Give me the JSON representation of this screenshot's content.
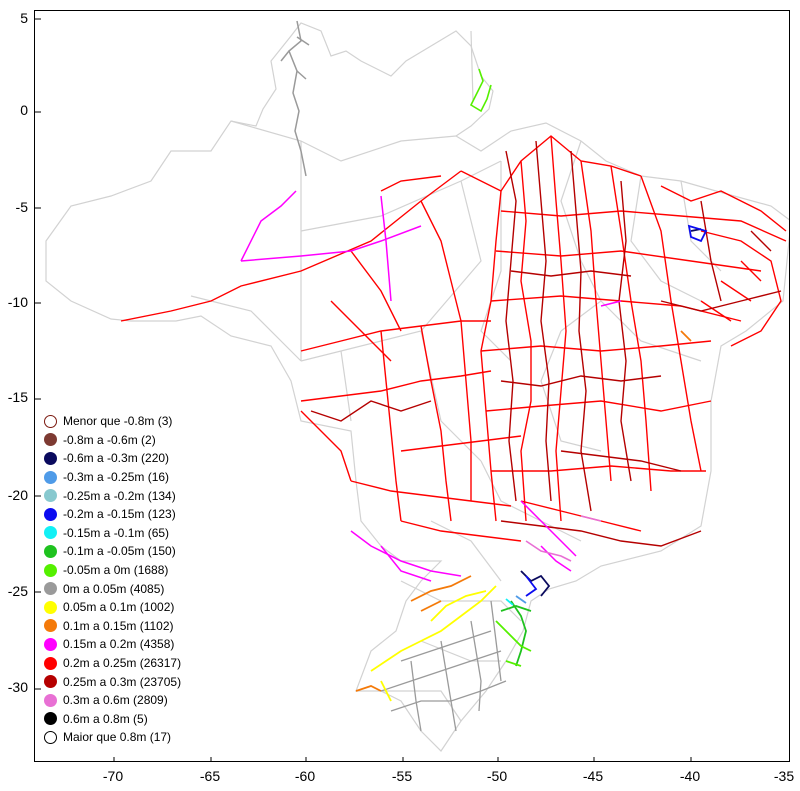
{
  "axes": {
    "x_ticks": [
      "-70",
      "-65",
      "-60",
      "-55",
      "-50",
      "-45",
      "-40",
      "-35"
    ],
    "y_ticks": [
      "5",
      "0",
      "-5",
      "-10",
      "-15",
      "-20",
      "-25",
      "-30"
    ]
  },
  "legend": [
    {
      "label": "Menor que -0.8m (3)",
      "color": "#ffffff",
      "border": "#7b1a10"
    },
    {
      "label": "-0.8m  a  -0.6m (2)",
      "color": "#7d3a32"
    },
    {
      "label": "-0.6m  a  -0.3m (220)",
      "color": "#0a0a5e"
    },
    {
      "label": "-0.3m  a  -0.25m (16)",
      "color": "#4f9be8"
    },
    {
      "label": "-0.25m  a  -0.2m (134)",
      "color": "#88c9cf"
    },
    {
      "label": "-0.2m  a  -0.15m (123)",
      "color": "#0b0bf0"
    },
    {
      "label": "-0.15m  a  -0.1m (65)",
      "color": "#12f0f5"
    },
    {
      "label": "-0.1m  a  -0.05m (150)",
      "color": "#1fc21f"
    },
    {
      "label": "-0.05m  a  0m (1688)",
      "color": "#55f000"
    },
    {
      "label": "0m  a  0.05m (4085)",
      "color": "#9a9a9a"
    },
    {
      "label": "0.05m  a  0.1m (1002)",
      "color": "#ffff00"
    },
    {
      "label": "0.1m  a  0.15m (1102)",
      "color": "#f47a0a"
    },
    {
      "label": "0.15m  a  0.2m (4358)",
      "color": "#ff00ff"
    },
    {
      "label": "0.2m  a  0.25m (26317)",
      "color": "#ff0000"
    },
    {
      "label": "0.25m  a  0.3m (23705)",
      "color": "#b50000"
    },
    {
      "label": "0.3m  a  0.6m (2809)",
      "color": "#e870d4"
    },
    {
      "label": "0.6m  a  0.8m (5)",
      "color": "#000000"
    },
    {
      "label": "Maior que 0.8m (17)",
      "color": "#ffffff",
      "border": "#000000"
    }
  ]
}
